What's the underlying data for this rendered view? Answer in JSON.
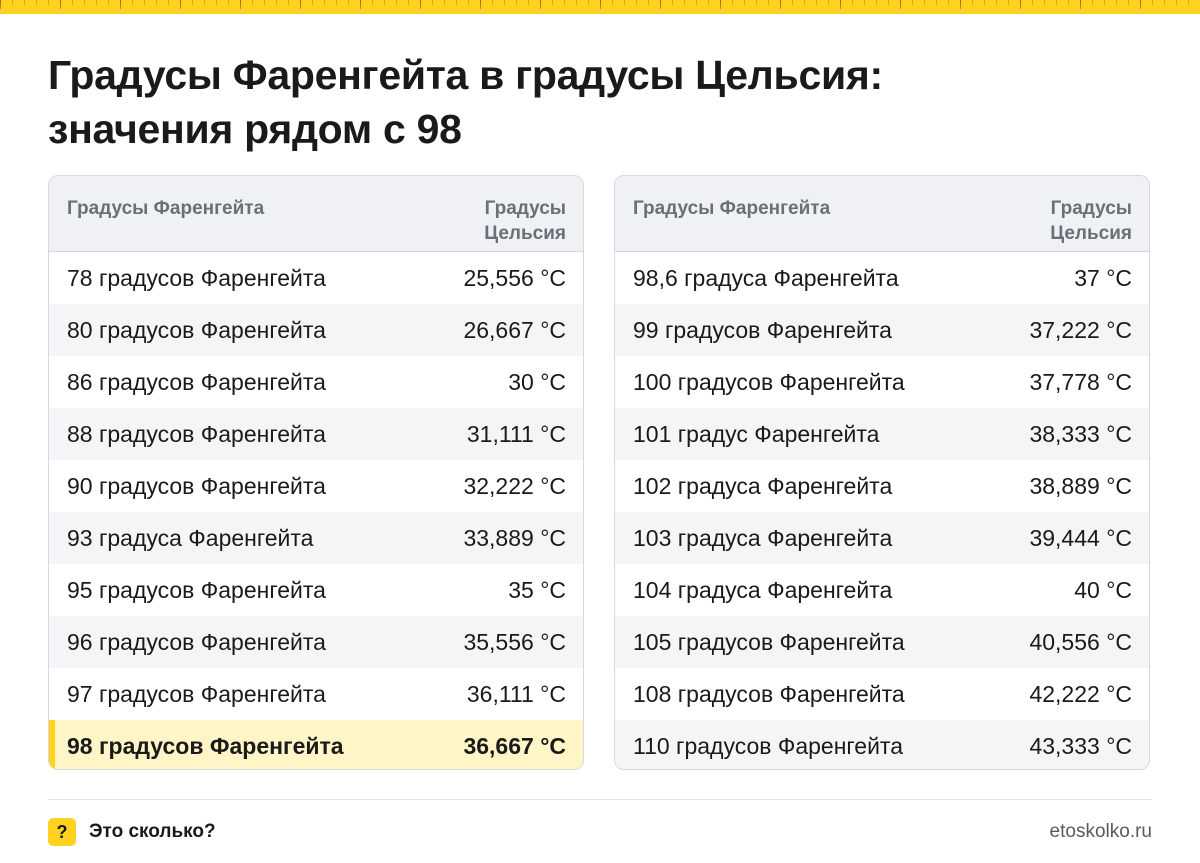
{
  "title": {
    "line1": "Градусы Фаренгейта в градусы Цельсия:",
    "line2": "значения рядом с 98"
  },
  "columns": {
    "fahrenheit": "Градусы Фаренгейта",
    "celsius_line1": "Градусы",
    "celsius_line2": "Цельсия"
  },
  "left_table": [
    {
      "f": "78 градусов Фаренгейта",
      "c": "25,556 °C"
    },
    {
      "f": "80 градусов Фаренгейта",
      "c": "26,667 °C"
    },
    {
      "f": "86 градусов Фаренгейта",
      "c": "30 °C"
    },
    {
      "f": "88 градусов Фаренгейта",
      "c": "31,111 °C"
    },
    {
      "f": "90 градусов Фаренгейта",
      "c": "32,222 °C"
    },
    {
      "f": "93 градуса Фаренгейта",
      "c": "33,889 °C"
    },
    {
      "f": "95 градусов Фаренгейта",
      "c": "35 °C"
    },
    {
      "f": "96 градусов Фаренгейта",
      "c": "35,556 °C"
    },
    {
      "f": "97 градусов Фаренгейта",
      "c": "36,111 °C"
    },
    {
      "f": "98 градусов Фаренгейта",
      "c": "36,667 °C",
      "highlight": true
    }
  ],
  "right_table": [
    {
      "f": "98,6 градуса Фаренгейта",
      "c": "37 °C"
    },
    {
      "f": "99 градусов Фаренгейта",
      "c": "37,222 °C"
    },
    {
      "f": "100 градусов Фаренгейта",
      "c": "37,778 °C"
    },
    {
      "f": "101 градус Фаренгейта",
      "c": "38,333 °C"
    },
    {
      "f": "102 градуса Фаренгейта",
      "c": "38,889 °C"
    },
    {
      "f": "103 градуса Фаренгейта",
      "c": "39,444 °C"
    },
    {
      "f": "104 градуса Фаренгейта",
      "c": "40 °C"
    },
    {
      "f": "105 градусов Фаренгейта",
      "c": "40,556 °C"
    },
    {
      "f": "108 градусов Фаренгейта",
      "c": "42,222 °C"
    },
    {
      "f": "110 градусов Фаренгейта",
      "c": "43,333 °C"
    }
  ],
  "footer": {
    "logo_glyph": "?",
    "brand": "Это сколько?",
    "site": "etoskolko.ru"
  },
  "colors": {
    "accent": "#ffd21f",
    "highlight_row": "#fff5c6",
    "header_bg": "#eff1f4"
  }
}
